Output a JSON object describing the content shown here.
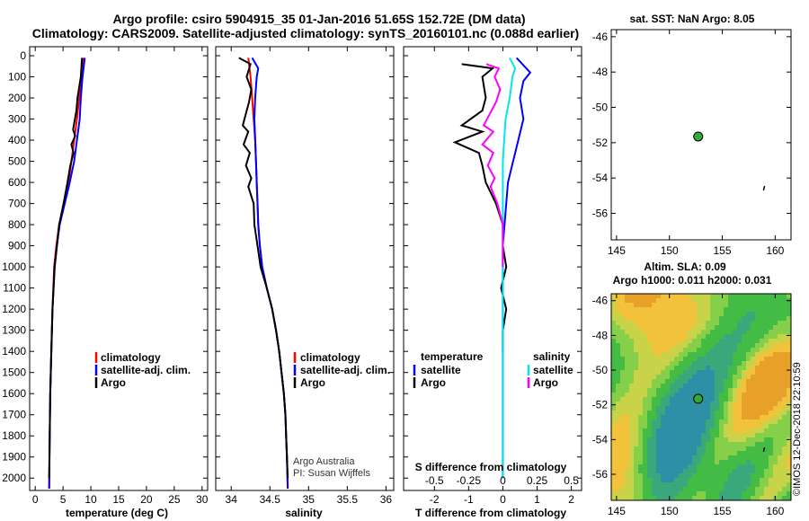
{
  "title_line1": "Argo profile: csiro 5904915_35 01-Jan-2016 51.65S 152.72E (DM data)",
  "title_line2": "Climatology: CARS2009. Satellite-adjusted climatology: synTS_20160101.nc (0.088d earlier)",
  "credit_line1": "Argo Australia",
  "credit_line2": "PI: Susan Wijffels",
  "stamp": "©IMOS 12-Dec-2018 22:10:59",
  "colors": {
    "climatology": "#ff0000",
    "satellite": "#0000ff",
    "argo": "#000000",
    "s_satellite": "#00e5ee",
    "s_argo": "#ff00ff",
    "map_point": "#33aa33"
  },
  "chart_data": [
    {
      "type": "line",
      "name": "temperature",
      "xlabel": "temperature (deg C)",
      "ylabel": "",
      "xlim": [
        -1,
        31
      ],
      "ylim": [
        2050,
        0
      ],
      "xticks": [
        0,
        5,
        10,
        15,
        20,
        25,
        30
      ],
      "yticks": [
        0,
        100,
        200,
        300,
        400,
        500,
        600,
        700,
        800,
        900,
        1000,
        1100,
        1200,
        1300,
        1400,
        1500,
        1600,
        1700,
        1800,
        1900,
        2000
      ],
      "legend": [
        {
          "label": "climatology"
        },
        {
          "label": "satellite-adj. clim."
        },
        {
          "label": "Argo"
        }
      ],
      "series": [
        {
          "name": "climatology",
          "color": "#ff0000",
          "points": [
            [
              8.7,
              10
            ],
            [
              8.3,
              100
            ],
            [
              7.9,
              200
            ],
            [
              7.5,
              300
            ],
            [
              7.0,
              400
            ],
            [
              6.5,
              500
            ],
            [
              6.0,
              600
            ],
            [
              5.2,
              700
            ],
            [
              4.3,
              800
            ],
            [
              3.8,
              900
            ],
            [
              3.4,
              1000
            ],
            [
              3.1,
              1200
            ],
            [
              2.9,
              1400
            ],
            [
              2.7,
              1600
            ],
            [
              2.6,
              1800
            ],
            [
              2.5,
              2050
            ]
          ]
        },
        {
          "name": "satellite",
          "color": "#0000ff",
          "points": [
            [
              8.9,
              10
            ],
            [
              8.5,
              100
            ],
            [
              8.2,
              200
            ],
            [
              8.0,
              300
            ],
            [
              7.5,
              400
            ],
            [
              7.0,
              500
            ],
            [
              6.2,
              600
            ],
            [
              5.3,
              700
            ],
            [
              4.4,
              800
            ],
            [
              3.9,
              900
            ],
            [
              3.5,
              1000
            ],
            [
              3.1,
              1200
            ],
            [
              2.9,
              1400
            ],
            [
              2.7,
              1600
            ],
            [
              2.6,
              1800
            ],
            [
              2.5,
              2050
            ]
          ]
        },
        {
          "name": "Argo",
          "color": "#000000",
          "points": [
            [
              8.4,
              10
            ],
            [
              8.2,
              100
            ],
            [
              7.6,
              200
            ],
            [
              7.4,
              260
            ],
            [
              6.8,
              350
            ],
            [
              7.2,
              380
            ],
            [
              6.5,
              420
            ],
            [
              6.9,
              460
            ],
            [
              6.3,
              520
            ],
            [
              5.8,
              600
            ],
            [
              5.1,
              700
            ],
            [
              4.3,
              800
            ],
            [
              3.9,
              900
            ],
            [
              3.5,
              1000
            ],
            [
              3.1,
              1200
            ],
            [
              2.9,
              1400
            ],
            [
              2.7,
              1600
            ],
            [
              2.6,
              1800
            ],
            [
              2.5,
              2000
            ]
          ]
        }
      ]
    },
    {
      "type": "line",
      "name": "salinity",
      "xlabel": "salinity",
      "ylabel": "",
      "xlim": [
        33.8,
        36.1
      ],
      "ylim": [
        2050,
        0
      ],
      "xticks": [
        34,
        34.5,
        35,
        35.5,
        36
      ],
      "legend": [
        {
          "label": "climatology"
        },
        {
          "label": "satellite-adj. clim."
        },
        {
          "label": "Argo"
        }
      ],
      "series": [
        {
          "name": "climatology",
          "color": "#ff0000",
          "points": [
            [
              34.22,
              10
            ],
            [
              34.25,
              100
            ],
            [
              34.27,
              200
            ],
            [
              34.29,
              300
            ],
            [
              34.31,
              400
            ],
            [
              34.32,
              500
            ],
            [
              34.33,
              600
            ],
            [
              34.34,
              700
            ],
            [
              34.35,
              800
            ],
            [
              34.37,
              900
            ],
            [
              34.4,
              1000
            ],
            [
              34.46,
              1100
            ],
            [
              34.53,
              1200
            ],
            [
              34.58,
              1300
            ],
            [
              34.62,
              1400
            ],
            [
              34.65,
              1500
            ],
            [
              34.68,
              1600
            ],
            [
              34.7,
              1700
            ],
            [
              34.71,
              1800
            ],
            [
              34.72,
              1900
            ],
            [
              34.73,
              2050
            ]
          ]
        },
        {
          "name": "satellite",
          "color": "#0000ff",
          "points": [
            [
              34.27,
              10
            ],
            [
              34.35,
              60
            ],
            [
              34.33,
              100
            ],
            [
              34.31,
              200
            ],
            [
              34.3,
              300
            ],
            [
              34.31,
              400
            ],
            [
              34.32,
              500
            ],
            [
              34.33,
              600
            ],
            [
              34.34,
              700
            ],
            [
              34.35,
              800
            ],
            [
              34.37,
              900
            ],
            [
              34.4,
              1000
            ],
            [
              34.46,
              1100
            ],
            [
              34.53,
              1200
            ],
            [
              34.58,
              1300
            ],
            [
              34.62,
              1400
            ],
            [
              34.65,
              1500
            ],
            [
              34.68,
              1600
            ],
            [
              34.7,
              1700
            ],
            [
              34.71,
              1800
            ],
            [
              34.72,
              1900
            ],
            [
              34.73,
              2050
            ]
          ]
        },
        {
          "name": "Argo",
          "color": "#000000",
          "points": [
            [
              34.1,
              10
            ],
            [
              34.25,
              40
            ],
            [
              34.2,
              100
            ],
            [
              34.26,
              160
            ],
            [
              34.23,
              220
            ],
            [
              34.15,
              330
            ],
            [
              34.22,
              360
            ],
            [
              34.16,
              420
            ],
            [
              34.24,
              460
            ],
            [
              34.19,
              520
            ],
            [
              34.26,
              580
            ],
            [
              34.22,
              620
            ],
            [
              34.29,
              700
            ],
            [
              34.3,
              800
            ],
            [
              34.34,
              900
            ],
            [
              34.38,
              1000
            ],
            [
              34.46,
              1100
            ],
            [
              34.53,
              1200
            ],
            [
              34.58,
              1300
            ],
            [
              34.62,
              1400
            ],
            [
              34.65,
              1500
            ],
            [
              34.68,
              1600
            ],
            [
              34.7,
              1700
            ],
            [
              34.71,
              1800
            ],
            [
              34.72,
              1900
            ],
            [
              34.73,
              2000
            ]
          ]
        }
      ]
    },
    {
      "type": "line",
      "name": "difference",
      "xlabel": "T difference from climatology",
      "x2label": "S difference from climatology",
      "xlim": [
        -2.9,
        2.3
      ],
      "x2lim": [
        -0.725,
        0.575
      ],
      "ylim": [
        2050,
        0
      ],
      "xticks": [
        -2,
        -1,
        0,
        1,
        2
      ],
      "x2ticks": [
        -0.5,
        -0.25,
        0,
        0.25,
        0.5
      ],
      "x2ticklabels": [
        "-0.5",
        "-0.25",
        "0",
        "0.25",
        "0.5"
      ],
      "legend_temperature": {
        "heading": "temperature",
        "items": [
          {
            "label": "satellite"
          },
          {
            "label": "Argo"
          }
        ]
      },
      "legend_salinity": {
        "heading": "salinity",
        "items": [
          {
            "label": "satellite"
          },
          {
            "label": "Argo"
          }
        ]
      },
      "series": [
        {
          "name": "T satellite",
          "color": "#0000ff",
          "axis": "T",
          "points": [
            [
              0.4,
              10
            ],
            [
              0.8,
              80
            ],
            [
              0.6,
              120
            ],
            [
              0.5,
              200
            ],
            [
              0.6,
              300
            ],
            [
              0.45,
              400
            ],
            [
              0.3,
              500
            ],
            [
              0.15,
              600
            ],
            [
              0.1,
              700
            ],
            [
              0.05,
              800
            ],
            [
              0.0,
              900
            ],
            [
              0.0,
              2000
            ]
          ]
        },
        {
          "name": "T Argo",
          "color": "#000000",
          "axis": "T",
          "points": [
            [
              -1.2,
              40
            ],
            [
              -0.3,
              60
            ],
            [
              -0.6,
              100
            ],
            [
              -0.5,
              200
            ],
            [
              -0.6,
              260
            ],
            [
              -1.2,
              330
            ],
            [
              -0.6,
              360
            ],
            [
              -1.4,
              410
            ],
            [
              -0.7,
              460
            ],
            [
              -0.6,
              520
            ],
            [
              -0.5,
              600
            ],
            [
              -0.2,
              700
            ],
            [
              0.0,
              800
            ],
            [
              0.0,
              900
            ],
            [
              0.1,
              1000
            ],
            [
              -0.05,
              1100
            ],
            [
              0.1,
              1200
            ],
            [
              0.0,
              1300
            ],
            [
              0.0,
              1400
            ]
          ]
        },
        {
          "name": "S satellite",
          "color": "#00e5ee",
          "axis": "S",
          "points": [
            [
              0.05,
              10
            ],
            [
              0.09,
              60
            ],
            [
              0.07,
              100
            ],
            [
              0.05,
              200
            ],
            [
              0.02,
              300
            ],
            [
              0.01,
              400
            ],
            [
              0.0,
              500
            ],
            [
              0.0,
              600
            ],
            [
              0.0,
              2000
            ]
          ]
        },
        {
          "name": "S Argo",
          "color": "#ff00ff",
          "axis": "S",
          "points": [
            [
              -0.12,
              40
            ],
            [
              -0.03,
              60
            ],
            [
              -0.06,
              100
            ],
            [
              -0.02,
              160
            ],
            [
              -0.05,
              220
            ],
            [
              -0.14,
              330
            ],
            [
              -0.07,
              360
            ],
            [
              -0.15,
              420
            ],
            [
              -0.07,
              460
            ],
            [
              -0.11,
              520
            ],
            [
              -0.06,
              580
            ],
            [
              -0.09,
              620
            ],
            [
              -0.04,
              700
            ],
            [
              0.0,
              800
            ],
            [
              0.0,
              900
            ],
            [
              0.0,
              1000
            ]
          ]
        }
      ]
    },
    {
      "type": "scatter",
      "name": "sst_map",
      "title": "sat. SST: NaN Argo: 8.05",
      "xlim": [
        144.5,
        161.5
      ],
      "ylim": [
        -57.5,
        -45.6
      ],
      "xticks": [
        145,
        150,
        155,
        160
      ],
      "yticks": [
        -46,
        -48,
        -50,
        -52,
        -54,
        -56
      ],
      "points": [
        {
          "lon": 152.72,
          "lat": -51.65
        }
      ]
    },
    {
      "type": "heatmap",
      "name": "sla_map",
      "title_line1": "Altim. SLA: 0.09",
      "title_line2": "Argo h1000: 0.011 h2000: 0.031",
      "xlim": [
        144.5,
        161.5
      ],
      "ylim": [
        -57.5,
        -45.6
      ],
      "xticks": [
        145,
        150,
        155,
        160
      ],
      "yticks": [
        -46,
        -48,
        -50,
        -52,
        -54,
        -56
      ],
      "points": [
        {
          "lon": 152.72,
          "lat": -51.65
        }
      ]
    }
  ]
}
